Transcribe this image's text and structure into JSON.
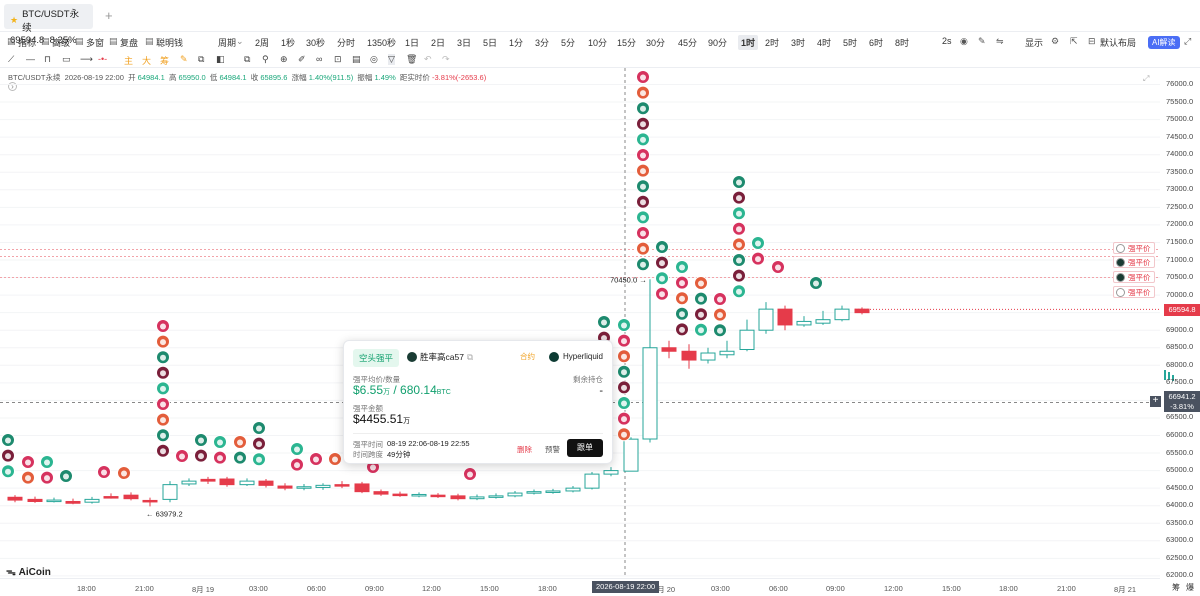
{
  "tab": {
    "symbol": "BTC/USDT永续",
    "price": "69594.8",
    "change": "8.25%"
  },
  "toolbar": {
    "items": [
      "指标",
      "高级",
      "多窗",
      "复盘",
      "聪明钱",
      "周期"
    ],
    "periods": [
      "2周",
      "1秒",
      "30秒",
      "分时",
      "1350秒",
      "1日",
      "2日",
      "3日",
      "5日",
      "1分",
      "3分",
      "5分",
      "10分",
      "15分",
      "30分",
      "45分",
      "90分",
      "1时",
      "2时",
      "3时",
      "4时",
      "5时",
      "6时",
      "8时"
    ],
    "active_period": "1时",
    "right": [
      "2s",
      "显示",
      "默认布局",
      "AI解读"
    ]
  },
  "drawbar": {
    "labels": [
      "主",
      "大",
      "筹"
    ]
  },
  "info": {
    "symbol": "BTC/USDT永续",
    "time": "2026-08-19 22:00",
    "open_lbl": "开",
    "open": "64984.1",
    "high_lbl": "高",
    "high": "65950.0",
    "low_lbl": "低",
    "low": "64984.1",
    "close_lbl": "收",
    "close": "65895.6",
    "chg_lbl": "涨幅",
    "chg": "1.40%(911.5)",
    "amp_lbl": "振幅",
    "amp": "1.49%",
    "dist_lbl": "距实时价",
    "dist": "-3.81%(-2653.6)"
  },
  "y_axis": [
    "76000.0",
    "75500.0",
    "75000.0",
    "74500.0",
    "74000.0",
    "73500.0",
    "73000.0",
    "72500.0",
    "72000.0",
    "71500.0",
    "71000.0",
    "70500.0",
    "70000.0",
    "69500.0",
    "69000.0",
    "68500.0",
    "68000.0",
    "67500.0",
    "67000.0",
    "66500.0",
    "66000.0",
    "65500.0",
    "65000.0",
    "64500.0",
    "64000.0",
    "63500.0",
    "63000.0",
    "62500.0",
    "62000.0"
  ],
  "x_axis": [
    "18:00",
    "21:00",
    "8月 19",
    "03:00",
    "06:00",
    "09:00",
    "12:00",
    "15:00",
    "18:00",
    "8月 20",
    "03:00",
    "06:00",
    "09:00",
    "12:00",
    "15:00",
    "18:00",
    "21:00",
    "8月 21"
  ],
  "crosshair": {
    "time": "2026-08-19 22:00",
    "price": "66941.2",
    "pct": "-3.81%"
  },
  "last_price": "69594.8",
  "marks": {
    "high_mark": "70450.0",
    "low_mark": "63979.2"
  },
  "liq_labels": [
    "强平价",
    "强平价",
    "强平价",
    "强平价"
  ],
  "popup": {
    "badge": "空头强平",
    "user": "胜率高ca57",
    "contract": "合约",
    "exchange": "Hyperliquid",
    "avg_lbl": "强平均价/数量",
    "avg_price": "$6.55",
    "avg_unit": "万",
    "qty": "680.14",
    "qty_unit": "BTC",
    "remain_lbl": "剩余持仓",
    "remain": "-",
    "amount_lbl": "强平金额",
    "amount": "$4455.51",
    "amount_unit": "万",
    "time_lbl": "强平时间",
    "time": "08-19 22:06-08-19 22:55",
    "span_lbl": "时间跨度",
    "span": "49分钟",
    "delete": "删除",
    "alert": "预警",
    "follow": "跟单"
  },
  "logo": "AiCoin",
  "bottom_right": [
    "筹",
    "爆"
  ],
  "colors": {
    "up": "#26a69a",
    "down": "#e53b4a",
    "accent": "#4b6ef5"
  }
}
